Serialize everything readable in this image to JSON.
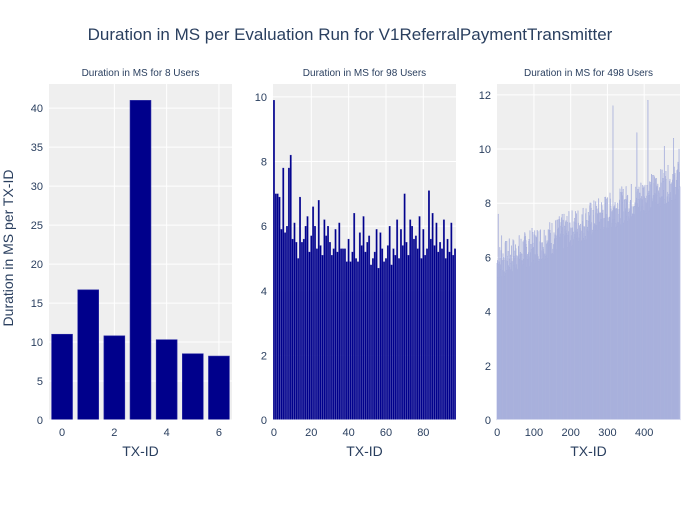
{
  "figure": {
    "title": "Duration in MS per Evaluation Run for V1ReferralPaymentTransmitter",
    "ylabel": "Duration in MS per TX-ID",
    "colors": {
      "plot_bg": "#efefef",
      "grid": "#ffffff",
      "text": "#2a3f5f",
      "bar_dark": "#00008b",
      "bar_mid": "#2d2da6",
      "bar_light": "#c5cbe8",
      "bar_light_edge": "#9da6d8"
    }
  },
  "chart_data": [
    {
      "type": "bar",
      "title": "Duration in MS for 8 Users",
      "xlabel": "TX-ID",
      "ylabel": "Duration in MS per TX-ID",
      "x": [
        0,
        1,
        2,
        3,
        4,
        5,
        6
      ],
      "values": [
        11.0,
        16.7,
        10.8,
        41.0,
        10.3,
        8.5,
        8.2
      ],
      "xlim": [
        -0.5,
        6.5
      ],
      "ylim": [
        0,
        43.1
      ],
      "xticks": [
        0,
        2,
        4,
        6
      ],
      "yticks": [
        0,
        5,
        10,
        15,
        20,
        25,
        30,
        35,
        40
      ],
      "grid": true
    },
    {
      "type": "bar",
      "title": "Duration in MS for 98 Users",
      "xlabel": "TX-ID",
      "x_start": 0,
      "values": [
        9.9,
        7.0,
        7.0,
        6.9,
        5.9,
        7.8,
        5.8,
        6.0,
        7.8,
        8.2,
        5.6,
        6.1,
        5.5,
        5.0,
        6.9,
        5.5,
        5.6,
        6.0,
        6.3,
        5.2,
        5.7,
        6.6,
        6.0,
        5.3,
        6.8,
        5.4,
        5.1,
        6.2,
        5.7,
        6.0,
        5.5,
        5.1,
        5.3,
        5.9,
        5.2,
        6.1,
        5.3,
        5.3,
        5.3,
        4.9,
        5.6,
        4.9,
        5.2,
        6.4,
        5.0,
        4.9,
        5.8,
        5.4,
        6.3,
        5.2,
        5.5,
        5.7,
        4.8,
        5.0,
        5.2,
        5.9,
        4.7,
        5.8,
        5.3,
        4.9,
        5.0,
        5.4,
        6.0,
        4.8,
        5.3,
        5.1,
        6.2,
        5.0,
        5.9,
        5.4,
        7.0,
        5.5,
        5.1,
        6.2,
        6.0,
        5.6,
        5.7,
        5.3,
        6.3,
        5.0,
        5.9,
        5.1,
        5.3,
        7.1,
        5.6,
        6.4,
        5.4,
        6.1,
        5.2,
        5.5,
        5.3,
        6.2,
        5.0,
        5.6,
        5.2,
        6.1,
        5.1,
        5.3
      ],
      "xlim": [
        -0.5,
        97.5
      ],
      "ylim": [
        0,
        10.4
      ],
      "xticks": [
        0,
        20,
        40,
        60,
        80
      ],
      "yticks": [
        0,
        2,
        4,
        6,
        8,
        10
      ],
      "grid": true
    },
    {
      "type": "bar",
      "title": "Duration in MS for 498 Users",
      "xlabel": "TX-ID",
      "x_start": 0,
      "generated_trend": {
        "count": 498,
        "start_value": 5.8,
        "end_value": 8.9,
        "noise": 0.7,
        "peaks": [
          [
            3,
            7.6
          ],
          [
            12,
            6.8
          ],
          [
            105,
            6.8
          ],
          [
            160,
            6.8
          ],
          [
            315,
            11.6
          ],
          [
            380,
            10.6
          ],
          [
            410,
            11.8
          ],
          [
            455,
            10.1
          ],
          [
            480,
            10.4
          ],
          [
            495,
            10.0
          ]
        ]
      },
      "xlim": [
        -0.5,
        497.5
      ],
      "ylim": [
        0,
        12.4
      ],
      "xticks": [
        0,
        100,
        200,
        300,
        400
      ],
      "yticks": [
        0,
        2,
        4,
        6,
        8,
        10,
        12
      ],
      "grid": true
    }
  ]
}
